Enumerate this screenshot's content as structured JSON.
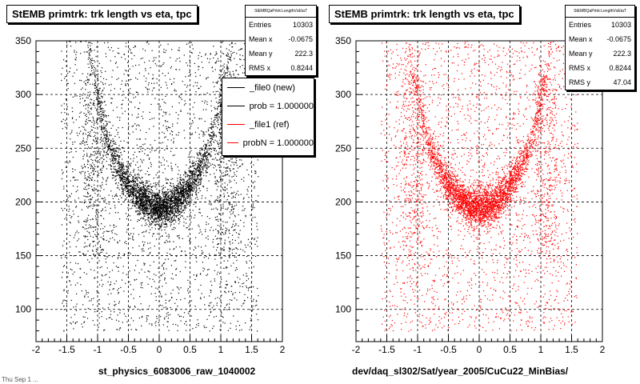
{
  "left_panel": {
    "title": "StEMB primtrk: trk length vs eta, tpc",
    "xlabel": "st_physics_6083006_raw_1040002",
    "stats": {
      "header": "StEMBQaPrtrk:LengthVsEtaT",
      "rows": [
        {
          "label": "Entries",
          "value": "10303"
        },
        {
          "label": "Mean x",
          "value": "-0.0675"
        },
        {
          "label": "Mean y",
          "value": "222.3"
        },
        {
          "label": "RMS x",
          "value": "0.8244"
        }
      ]
    },
    "legend": [
      {
        "label": "_file0 (new)",
        "color": "#000000"
      },
      {
        "label": "prob = 1.000000",
        "color": "#000000"
      },
      {
        "label": "_file1 (ref)",
        "color": "#ff0000"
      },
      {
        "label": "probN = 1.000000",
        "color": "#ff0000"
      }
    ]
  },
  "right_panel": {
    "title": "StEMB primtrk: trk length vs eta, tpc",
    "xlabel": "dev/daq_sl302/Sat/year_2005/CuCu22_MinBias/",
    "stats": {
      "header": "StEMBQaPrtrk:LengthVsEtaT",
      "rows": [
        {
          "label": "Entries",
          "value": "10303"
        },
        {
          "label": "Mean x",
          "value": "-0.0675"
        },
        {
          "label": "Mean y",
          "value": "222.3"
        },
        {
          "label": "RMS x",
          "value": "0.8244"
        },
        {
          "label": "RMS y",
          "value": "47.04"
        }
      ]
    }
  },
  "corner_text": "Thu Sep 1 ...",
  "chart_data": [
    {
      "type": "scatter",
      "title": "StEMB primtrk: trk length vs eta, tpc",
      "xlabel": "st_physics_6083006_raw_1040002",
      "ylabel": "",
      "xlim": [
        -2,
        2
      ],
      "ylim": [
        70,
        350
      ],
      "xticks": [
        -2,
        -1.5,
        -1,
        -0.5,
        0,
        0.5,
        1,
        1.5,
        2
      ],
      "yticks": [
        100,
        150,
        200,
        250,
        300,
        350
      ],
      "grid": true,
      "marker_color": "#000000",
      "entries": 10303,
      "mean_x": -0.0675,
      "mean_y": 222.3,
      "rms_x": 0.8244,
      "shape": "U-shaped band: length ~195 at eta 0 rising to ~255 at |eta|~0.7 and ~300 at |eta|~1.1, with diffuse background"
    },
    {
      "type": "scatter",
      "title": "StEMB primtrk: trk length vs eta, tpc",
      "xlabel": "dev/daq_sl302/Sat/year_2005/CuCu22_MinBias/",
      "ylabel": "",
      "xlim": [
        -2,
        2
      ],
      "ylim": [
        70,
        350
      ],
      "xticks": [
        -2,
        -1.5,
        -1,
        -0.5,
        0,
        0.5,
        1,
        1.5,
        2
      ],
      "yticks": [
        100,
        150,
        200,
        250,
        300,
        350
      ],
      "grid": true,
      "marker_color": "#ff0000",
      "entries": 10303,
      "mean_x": -0.0675,
      "mean_y": 222.3,
      "rms_x": 0.8244,
      "rms_y": 47.04,
      "shape": "U-shaped band: length ~195 at eta 0 rising to ~255 at |eta|~0.7 and ~300 at |eta|~1.1, with diffuse background"
    }
  ]
}
